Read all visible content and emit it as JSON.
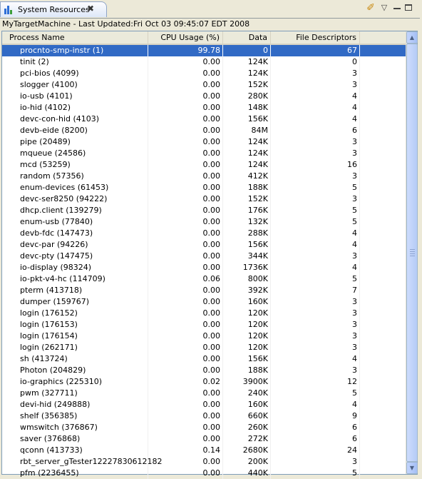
{
  "tab": {
    "title": "System Resources",
    "close": "✖"
  },
  "toolbar": {
    "brush_icon": "paint-brush-icon",
    "menu": "▽"
  },
  "status_line": "MyTargetMachine  - Last Updated:Fri Oct 03 09:45:07 EDT 2008",
  "table": {
    "columns": [
      "Process Name",
      "CPU Usage (%)",
      "Data",
      "File Descriptors"
    ],
    "selected_index": 0,
    "rows": [
      [
        "procnto-smp-instr (1)",
        "99.78",
        "0",
        "67"
      ],
      [
        "tinit (2)",
        "0.00",
        "124K",
        "0"
      ],
      [
        "pci-bios (4099)",
        "0.00",
        "124K",
        "3"
      ],
      [
        "slogger (4100)",
        "0.00",
        "152K",
        "3"
      ],
      [
        "io-usb (4101)",
        "0.00",
        "280K",
        "4"
      ],
      [
        "io-hid (4102)",
        "0.00",
        "148K",
        "4"
      ],
      [
        "devc-con-hid (4103)",
        "0.00",
        "156K",
        "4"
      ],
      [
        "devb-eide (8200)",
        "0.00",
        "84M",
        "6"
      ],
      [
        "pipe (20489)",
        "0.00",
        "124K",
        "3"
      ],
      [
        "mqueue (24586)",
        "0.00",
        "124K",
        "3"
      ],
      [
        "mcd (53259)",
        "0.00",
        "124K",
        "16"
      ],
      [
        "random (57356)",
        "0.00",
        "412K",
        "3"
      ],
      [
        "enum-devices (61453)",
        "0.00",
        "188K",
        "5"
      ],
      [
        "devc-ser8250 (94222)",
        "0.00",
        "152K",
        "3"
      ],
      [
        "dhcp.client (139279)",
        "0.00",
        "176K",
        "5"
      ],
      [
        "enum-usb (77840)",
        "0.00",
        "132K",
        "5"
      ],
      [
        "devb-fdc (147473)",
        "0.00",
        "288K",
        "4"
      ],
      [
        "devc-par (94226)",
        "0.00",
        "156K",
        "4"
      ],
      [
        "devc-pty (147475)",
        "0.00",
        "344K",
        "3"
      ],
      [
        "io-display (98324)",
        "0.00",
        "1736K",
        "4"
      ],
      [
        "io-pkt-v4-hc (114709)",
        "0.06",
        "800K",
        "5"
      ],
      [
        "pterm (413718)",
        "0.00",
        "392K",
        "7"
      ],
      [
        "dumper (159767)",
        "0.00",
        "160K",
        "3"
      ],
      [
        "login (176152)",
        "0.00",
        "120K",
        "3"
      ],
      [
        "login (176153)",
        "0.00",
        "120K",
        "3"
      ],
      [
        "login (176154)",
        "0.00",
        "120K",
        "3"
      ],
      [
        "login (262171)",
        "0.00",
        "120K",
        "3"
      ],
      [
        "sh (413724)",
        "0.00",
        "156K",
        "4"
      ],
      [
        "Photon (204829)",
        "0.00",
        "188K",
        "3"
      ],
      [
        "io-graphics (225310)",
        "0.02",
        "3900K",
        "12"
      ],
      [
        "pwm (327711)",
        "0.00",
        "240K",
        "5"
      ],
      [
        "devi-hid (249888)",
        "0.00",
        "160K",
        "4"
      ],
      [
        "shelf (356385)",
        "0.00",
        "660K",
        "9"
      ],
      [
        "wmswitch (376867)",
        "0.00",
        "260K",
        "6"
      ],
      [
        "saver (376868)",
        "0.00",
        "272K",
        "6"
      ],
      [
        "qconn (413733)",
        "0.14",
        "2680K",
        "24"
      ],
      [
        "rbt_server_gTester12227830612182",
        "0.00",
        "200K",
        "3"
      ],
      [
        "pfm (2236455)",
        "0.00",
        "440K",
        "5"
      ]
    ]
  }
}
